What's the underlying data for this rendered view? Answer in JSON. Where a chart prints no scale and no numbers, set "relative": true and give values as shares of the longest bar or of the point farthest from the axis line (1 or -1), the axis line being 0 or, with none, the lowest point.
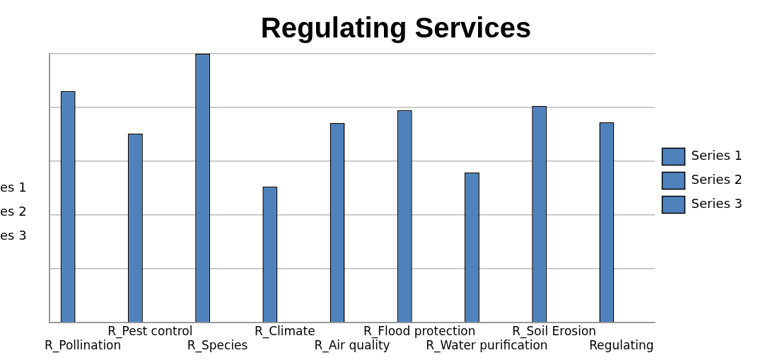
{
  "chart_data": {
    "type": "bar",
    "title": "Regulating Services",
    "relative": true,
    "grid": "y",
    "legend": "right",
    "categories": [
      "R_Pollination",
      "R_Pest control",
      "R_Species",
      "R_Climate",
      "R_Air quality",
      "R_Flood protection",
      "R_Water purification",
      "R_Soil Erosion",
      "Regulating"
    ],
    "series": [
      {
        "name": "Series 1",
        "color": "#4f81bd",
        "values": [
          0.861,
          0.703,
          1,
          0.506,
          0.742,
          0.79,
          0.558,
          0.806,
          0.745
        ]
      },
      {
        "name": "Series 2",
        "color": "#4f81bd",
        "values": [
          null,
          null,
          null,
          null,
          null,
          null,
          null,
          null,
          null
        ]
      },
      {
        "name": "Series 3",
        "color": "#4f81bd",
        "values": [
          null,
          null,
          null,
          null,
          null,
          null,
          null,
          null,
          null
        ]
      }
    ],
    "annotations": [
      "es 1",
      "es 2",
      "es 3"
    ]
  }
}
